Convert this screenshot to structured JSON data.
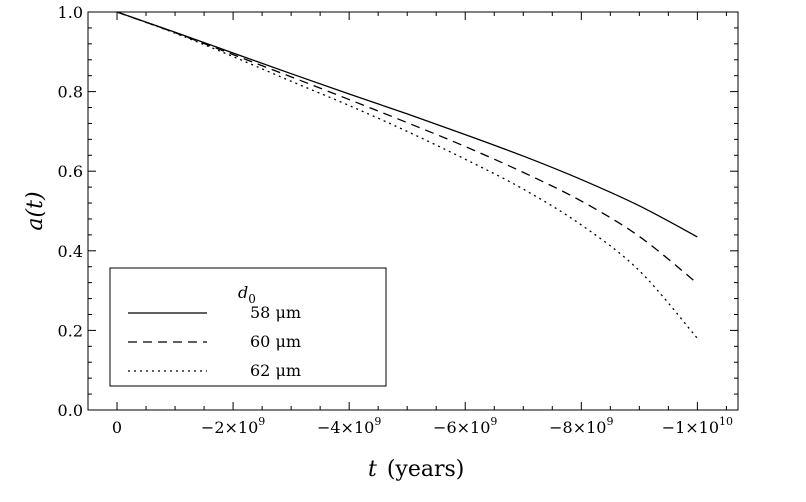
{
  "chart_data": {
    "type": "line",
    "xlabel": "t (years)",
    "xlabel_var": "t",
    "xlabel_unit": "(years)",
    "ylabel": "a(t)",
    "xlim": [
      500000000.0,
      -10700000000.0
    ],
    "ylim": [
      0,
      1
    ],
    "x_ticks": [
      {
        "value": 0,
        "label": "0"
      },
      {
        "value": -2000000000.0,
        "label": "−2×10",
        "exp": "9"
      },
      {
        "value": -4000000000.0,
        "label": "−4×10",
        "exp": "9"
      },
      {
        "value": -6000000000.0,
        "label": "−6×10",
        "exp": "9"
      },
      {
        "value": -8000000000.0,
        "label": "−8×10",
        "exp": "9"
      },
      {
        "value": -10000000000.0,
        "label": "−1×10",
        "exp": "10"
      }
    ],
    "y_ticks": [
      {
        "value": 0,
        "label": "0.0"
      },
      {
        "value": 0.2,
        "label": "0.2"
      },
      {
        "value": 0.4,
        "label": "0.4"
      },
      {
        "value": 0.6,
        "label": "0.6"
      },
      {
        "value": 0.8,
        "label": "0.8"
      },
      {
        "value": 1.0,
        "label": "1.0"
      }
    ],
    "grid": false,
    "legend": {
      "title": "d",
      "title_sub": "0",
      "placement": "bottom-left",
      "entries": [
        "58 μm",
        "60 μm",
        "62 μm"
      ]
    },
    "series": [
      {
        "name": "58 μm",
        "style": "solid",
        "x": [
          0,
          -1000000000.0,
          -2000000000.0,
          -3000000000.0,
          -4000000000.0,
          -5000000000.0,
          -6000000000.0,
          -7000000000.0,
          -8000000000.0,
          -9000000000.0,
          -10000000000.0
        ],
        "y": [
          1.0,
          0.949,
          0.897,
          0.845,
          0.794,
          0.744,
          0.692,
          0.638,
          0.579,
          0.513,
          0.435
        ]
      },
      {
        "name": "60 μm",
        "style": "dashed",
        "x": [
          0,
          -1000000000.0,
          -2000000000.0,
          -3000000000.0,
          -4000000000.0,
          -5000000000.0,
          -6000000000.0,
          -7000000000.0,
          -8000000000.0,
          -9000000000.0,
          -10000000000.0
        ],
        "y": [
          1.0,
          0.948,
          0.893,
          0.837,
          0.78,
          0.722,
          0.662,
          0.597,
          0.525,
          0.436,
          0.318
        ]
      },
      {
        "name": "62 μm",
        "style": "dotted",
        "x": [
          0,
          -1000000000.0,
          -2000000000.0,
          -3000000000.0,
          -4000000000.0,
          -5000000000.0,
          -6000000000.0,
          -7000000000.0,
          -8000000000.0,
          -9000000000.0,
          -10000000000.0
        ],
        "y": [
          1.0,
          0.947,
          0.888,
          0.826,
          0.765,
          0.7,
          0.63,
          0.555,
          0.465,
          0.35,
          0.18
        ]
      }
    ]
  }
}
